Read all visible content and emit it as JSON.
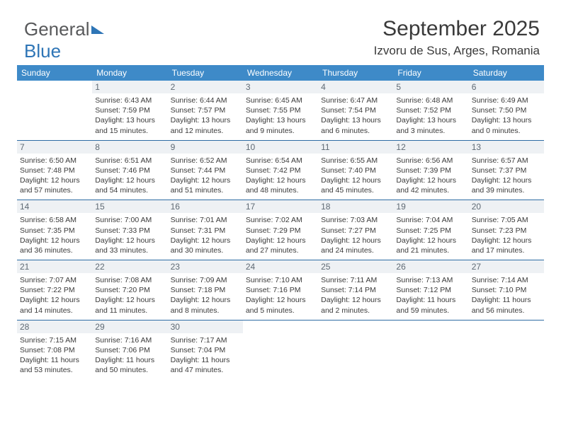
{
  "logo": {
    "part1": "General",
    "part2": "Blue"
  },
  "title": "September 2025",
  "subtitle": "Izvoru de Sus, Arges, Romania",
  "colors": {
    "header_bg": "#3e8ac8",
    "header_text": "#ffffff",
    "daynum_bg": "#eef1f4",
    "daynum_text": "#5f6a74",
    "info_text": "#3a3a3a",
    "rule": "#2e6ca4",
    "logo_gray": "#58595b",
    "logo_blue": "#2e75b6"
  },
  "headers": [
    "Sunday",
    "Monday",
    "Tuesday",
    "Wednesday",
    "Thursday",
    "Friday",
    "Saturday"
  ],
  "weeks": [
    [
      null,
      {
        "d": "1",
        "sr": "6:43 AM",
        "ss": "7:59 PM",
        "dl": "13 hours and 15 minutes."
      },
      {
        "d": "2",
        "sr": "6:44 AM",
        "ss": "7:57 PM",
        "dl": "13 hours and 12 minutes."
      },
      {
        "d": "3",
        "sr": "6:45 AM",
        "ss": "7:55 PM",
        "dl": "13 hours and 9 minutes."
      },
      {
        "d": "4",
        "sr": "6:47 AM",
        "ss": "7:54 PM",
        "dl": "13 hours and 6 minutes."
      },
      {
        "d": "5",
        "sr": "6:48 AM",
        "ss": "7:52 PM",
        "dl": "13 hours and 3 minutes."
      },
      {
        "d": "6",
        "sr": "6:49 AM",
        "ss": "7:50 PM",
        "dl": "13 hours and 0 minutes."
      }
    ],
    [
      {
        "d": "7",
        "sr": "6:50 AM",
        "ss": "7:48 PM",
        "dl": "12 hours and 57 minutes."
      },
      {
        "d": "8",
        "sr": "6:51 AM",
        "ss": "7:46 PM",
        "dl": "12 hours and 54 minutes."
      },
      {
        "d": "9",
        "sr": "6:52 AM",
        "ss": "7:44 PM",
        "dl": "12 hours and 51 minutes."
      },
      {
        "d": "10",
        "sr": "6:54 AM",
        "ss": "7:42 PM",
        "dl": "12 hours and 48 minutes."
      },
      {
        "d": "11",
        "sr": "6:55 AM",
        "ss": "7:40 PM",
        "dl": "12 hours and 45 minutes."
      },
      {
        "d": "12",
        "sr": "6:56 AM",
        "ss": "7:39 PM",
        "dl": "12 hours and 42 minutes."
      },
      {
        "d": "13",
        "sr": "6:57 AM",
        "ss": "7:37 PM",
        "dl": "12 hours and 39 minutes."
      }
    ],
    [
      {
        "d": "14",
        "sr": "6:58 AM",
        "ss": "7:35 PM",
        "dl": "12 hours and 36 minutes."
      },
      {
        "d": "15",
        "sr": "7:00 AM",
        "ss": "7:33 PM",
        "dl": "12 hours and 33 minutes."
      },
      {
        "d": "16",
        "sr": "7:01 AM",
        "ss": "7:31 PM",
        "dl": "12 hours and 30 minutes."
      },
      {
        "d": "17",
        "sr": "7:02 AM",
        "ss": "7:29 PM",
        "dl": "12 hours and 27 minutes."
      },
      {
        "d": "18",
        "sr": "7:03 AM",
        "ss": "7:27 PM",
        "dl": "12 hours and 24 minutes."
      },
      {
        "d": "19",
        "sr": "7:04 AM",
        "ss": "7:25 PM",
        "dl": "12 hours and 21 minutes."
      },
      {
        "d": "20",
        "sr": "7:05 AM",
        "ss": "7:23 PM",
        "dl": "12 hours and 17 minutes."
      }
    ],
    [
      {
        "d": "21",
        "sr": "7:07 AM",
        "ss": "7:22 PM",
        "dl": "12 hours and 14 minutes."
      },
      {
        "d": "22",
        "sr": "7:08 AM",
        "ss": "7:20 PM",
        "dl": "12 hours and 11 minutes."
      },
      {
        "d": "23",
        "sr": "7:09 AM",
        "ss": "7:18 PM",
        "dl": "12 hours and 8 minutes."
      },
      {
        "d": "24",
        "sr": "7:10 AM",
        "ss": "7:16 PM",
        "dl": "12 hours and 5 minutes."
      },
      {
        "d": "25",
        "sr": "7:11 AM",
        "ss": "7:14 PM",
        "dl": "12 hours and 2 minutes."
      },
      {
        "d": "26",
        "sr": "7:13 AM",
        "ss": "7:12 PM",
        "dl": "11 hours and 59 minutes."
      },
      {
        "d": "27",
        "sr": "7:14 AM",
        "ss": "7:10 PM",
        "dl": "11 hours and 56 minutes."
      }
    ],
    [
      {
        "d": "28",
        "sr": "7:15 AM",
        "ss": "7:08 PM",
        "dl": "11 hours and 53 minutes."
      },
      {
        "d": "29",
        "sr": "7:16 AM",
        "ss": "7:06 PM",
        "dl": "11 hours and 50 minutes."
      },
      {
        "d": "30",
        "sr": "7:17 AM",
        "ss": "7:04 PM",
        "dl": "11 hours and 47 minutes."
      },
      null,
      null,
      null,
      null
    ]
  ],
  "labels": {
    "sunrise": "Sunrise:",
    "sunset": "Sunset:",
    "daylight": "Daylight:"
  }
}
